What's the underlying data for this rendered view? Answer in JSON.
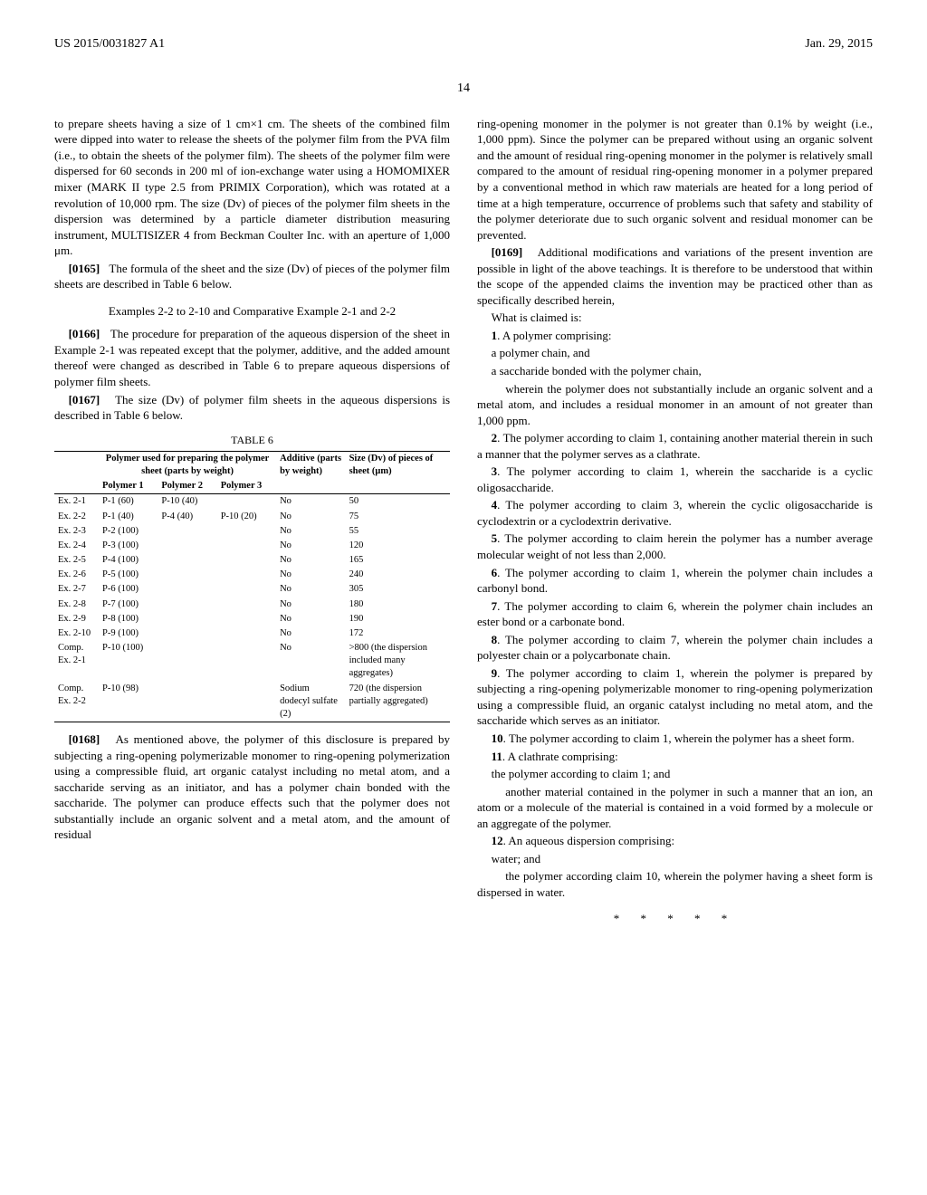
{
  "header": {
    "left": "US 2015/0031827 A1",
    "right": "Jan. 29, 2015"
  },
  "page_number": "14",
  "left_col": {
    "p1": "to prepare sheets having a size of 1 cm×1 cm. The sheets of the combined film were dipped into water to release the sheets of the polymer film from the PVA film (i.e., to obtain the sheets of the polymer film). The sheets of the polymer film were dispersed for 60 seconds in 200 ml of ion-exchange water using a HOMOMIXER mixer (MARK II type 2.5 from PRIMIX Corporation), which was rotated at a revolution of 10,000 rpm. The size (Dv) of pieces of the polymer film sheets in the dispersion was determined by a particle diameter distribution measuring instrument, MULTISIZER 4 from Beckman Coulter Inc. with an aperture of 1,000 μm.",
    "p2_num": "[0165]",
    "p2": "The formula of the sheet and the size (Dv) of pieces of the polymer film sheets are described in Table 6 below.",
    "sec_title": "Examples 2-2 to 2-10 and Comparative Example 2-1 and 2-2",
    "p3_num": "[0166]",
    "p3": "The procedure for preparation of the aqueous dispersion of the sheet in Example 2-1 was repeated except that the polymer, additive, and the added amount thereof were changed as described in Table 6 to prepare aqueous dispersions of polymer film sheets.",
    "p4_num": "[0167]",
    "p4": "The size (Dv) of polymer film sheets in the aqueous dispersions is described in Table 6 below.",
    "table_caption": "TABLE 6",
    "table": {
      "group_header": "Polymer used for preparing the polymer sheet (parts by weight)",
      "col_add": "Additive (parts by weight)",
      "col_size": "Size (Dv) of pieces of sheet (μm)",
      "sub1": "Polymer 1",
      "sub2": "Polymer 2",
      "sub3": "Polymer 3",
      "rows": [
        {
          "ex": "Ex. 2-1",
          "p1": "P-1 (60)",
          "p2": "P-10 (40)",
          "p3": "",
          "add": "No",
          "size": "50"
        },
        {
          "ex": "Ex. 2-2",
          "p1": "P-1 (40)",
          "p2": "P-4 (40)",
          "p3": "P-10 (20)",
          "add": "No",
          "size": "75"
        },
        {
          "ex": "Ex. 2-3",
          "p1": "P-2 (100)",
          "p2": "",
          "p3": "",
          "add": "No",
          "size": "55"
        },
        {
          "ex": "Ex. 2-4",
          "p1": "P-3 (100)",
          "p2": "",
          "p3": "",
          "add": "No",
          "size": "120"
        },
        {
          "ex": "Ex. 2-5",
          "p1": "P-4 (100)",
          "p2": "",
          "p3": "",
          "add": "No",
          "size": "165"
        },
        {
          "ex": "Ex. 2-6",
          "p1": "P-5 (100)",
          "p2": "",
          "p3": "",
          "add": "No",
          "size": "240"
        },
        {
          "ex": "Ex. 2-7",
          "p1": "P-6 (100)",
          "p2": "",
          "p3": "",
          "add": "No",
          "size": "305"
        },
        {
          "ex": "Ex. 2-8",
          "p1": "P-7 (100)",
          "p2": "",
          "p3": "",
          "add": "No",
          "size": "180"
        },
        {
          "ex": "Ex. 2-9",
          "p1": "P-8 (100)",
          "p2": "",
          "p3": "",
          "add": "No",
          "size": "190"
        },
        {
          "ex": "Ex. 2-10",
          "p1": "P-9 (100)",
          "p2": "",
          "p3": "",
          "add": "No",
          "size": "172"
        },
        {
          "ex": "Comp. Ex. 2-1",
          "p1": "P-10 (100)",
          "p2": "",
          "p3": "",
          "add": "No",
          "size": ">800 (the dispersion included many aggregates)"
        },
        {
          "ex": "Comp. Ex. 2-2",
          "p1": "P-10 (98)",
          "p2": "",
          "p3": "",
          "add": "Sodium dodecyl sulfate (2)",
          "size": "720 (the dispersion partially aggregated)"
        }
      ]
    },
    "p5_num": "[0168]",
    "p5": "As mentioned above, the polymer of this disclosure is prepared by subjecting a ring-opening polymerizable monomer to ring-opening polymerization using a compressible fluid, art organic catalyst including no metal atom, and a saccharide serving as an initiator, and has a polymer chain bonded with the saccharide. The polymer can produce effects such that the polymer does not substantially include an organic solvent and a metal atom, and the amount of residual"
  },
  "right_col": {
    "p1": "ring-opening monomer in the polymer is not greater than 0.1% by weight (i.e., 1,000 ppm). Since the polymer can be prepared without using an organic solvent and the amount of residual ring-opening monomer in the polymer is relatively small compared to the amount of residual ring-opening monomer in a polymer prepared by a conventional method in which raw materials are heated for a long period of time at a high temperature, occurrence of problems such that safety and stability of the polymer deteriorate due to such organic solvent and residual monomer can be prevented.",
    "p2_num": "[0169]",
    "p2": "Additional modifications and variations of the present invention are possible in light of the above teachings. It is therefore to be understood that within the scope of the appended claims the invention may be practiced other than as specifically described herein,",
    "what_claimed": "What is claimed is:",
    "claims": [
      {
        "n": "1",
        "t": ". A polymer comprising:",
        "lines": [
          "a polymer chain, and",
          "a saccharide bonded with the polymer chain,",
          "wherein the polymer does not substantially include an organic solvent and a metal atom, and includes a residual monomer in an amount of not greater than 1,000 ppm."
        ]
      },
      {
        "n": "2",
        "t": ". The polymer according to claim 1, containing another material therein in such a manner that the polymer serves as a clathrate."
      },
      {
        "n": "3",
        "t": ". The polymer according to claim 1, wherein the saccharide is a cyclic oligosaccharide."
      },
      {
        "n": "4",
        "t": ". The polymer according to claim 3, wherein the cyclic oligosaccharide is cyclodextrin or a cyclodextrin derivative."
      },
      {
        "n": "5",
        "t": ". The polymer according to claim herein the polymer has a number average molecular weight of not less than 2,000."
      },
      {
        "n": "6",
        "t": ". The polymer according to claim 1, wherein the polymer chain includes a carbonyl bond."
      },
      {
        "n": "7",
        "t": ". The polymer according to claim 6, wherein the polymer chain includes an ester bond or a carbonate bond."
      },
      {
        "n": "8",
        "t": ". The polymer according to claim 7, wherein the polymer chain includes a polyester chain or a polycarbonate chain."
      },
      {
        "n": "9",
        "t": ". The polymer according to claim 1, wherein the polymer is prepared by subjecting a ring-opening polymerizable monomer to ring-opening polymerization using a compressible fluid, an organic catalyst including no metal atom, and the saccharide which serves as an initiator."
      },
      {
        "n": "10",
        "t": ". The polymer according to claim 1, wherein the polymer has a sheet form."
      },
      {
        "n": "11",
        "t": ". A clathrate comprising:",
        "lines": [
          "the polymer according to claim 1; and",
          "another material contained in the polymer in such a manner that an ion, an atom or a molecule of the material is contained in a void formed by a molecule or an aggregate of the polymer."
        ]
      },
      {
        "n": "12",
        "t": ". An aqueous dispersion comprising:",
        "lines": [
          "water; and",
          "the polymer according claim 10, wherein the polymer having a sheet form is dispersed in water."
        ]
      }
    ],
    "stars": "* * * * *"
  }
}
